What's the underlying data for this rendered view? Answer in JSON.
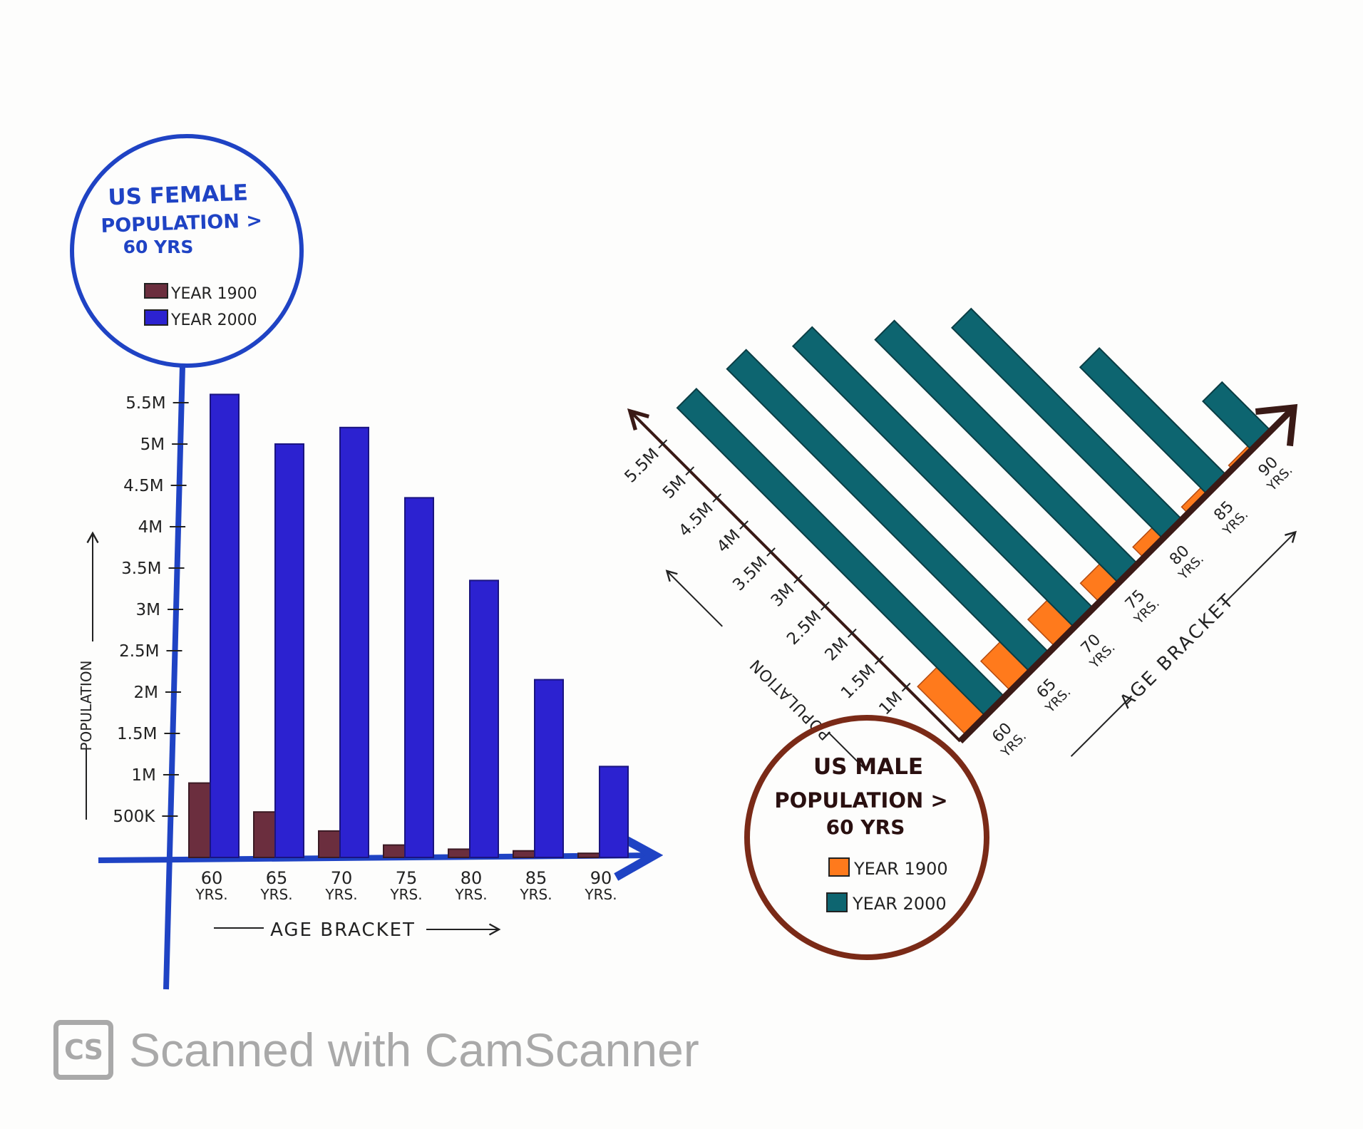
{
  "chart_data": [
    {
      "type": "bar",
      "title": "US FEMALE POPULATION > 60 YRS",
      "xlabel": "AGE BRACKET",
      "ylabel": "POPULATION",
      "categories": [
        "60 YRS.",
        "65 YRS.",
        "70 YRS.",
        "75 YRS.",
        "80 YRS.",
        "85 YRS.",
        "90 YRS."
      ],
      "yticks": [
        "500K",
        "1M",
        "1.5M",
        "2M",
        "2.5M",
        "3M",
        "3.5M",
        "4M",
        "4.5M",
        "5M",
        "5.5M"
      ],
      "ylim": [
        0,
        5.5
      ],
      "series": [
        {
          "name": "YEAR 1900",
          "values": [
            0.9,
            0.55,
            0.32,
            0.15,
            0.1,
            0.08,
            0.05
          ]
        },
        {
          "name": "YEAR 2000",
          "values": [
            5.6,
            5.0,
            5.2,
            4.35,
            3.35,
            2.15,
            1.1
          ]
        }
      ],
      "colors": {
        "YEAR 1900": "#6b2e3e",
        "YEAR 2000": "#2c22d0",
        "axis": "#1f43c4"
      },
      "legend_position": "top-left, inside title circle"
    },
    {
      "type": "bar",
      "title": "US MALE POPULATION > 60 YRS",
      "xlabel": "AGE BRACKET",
      "ylabel": "POPULATION",
      "categories": [
        "60 YRS.",
        "65 YRS.",
        "70 YRS.",
        "75 YRS.",
        "80 YRS.",
        "85 YRS.",
        "90 YRS."
      ],
      "yticks": [
        "1M",
        "1.5M",
        "2M",
        "2.5M",
        "3M",
        "3.5M",
        "4M",
        "4.5M",
        "5M",
        "5.5M"
      ],
      "ylim": [
        0,
        5.5
      ],
      "series": [
        {
          "name": "YEAR 1900",
          "values": [
            0.9,
            0.55,
            0.5,
            0.35,
            0.2,
            0.12,
            0.07
          ]
        },
        {
          "name": "YEAR 2000",
          "values": [
            5.7,
            5.6,
            5.2,
            4.5,
            3.9,
            2.35,
            0.9
          ]
        }
      ],
      "colors": {
        "YEAR 1900": "#ff7a1c",
        "YEAR 2000": "#0d6570",
        "axis": "#4a1e1a",
        "circle": "#7a2a17"
      },
      "legend_position": "bottom, inside title circle",
      "orientation": "rotated 45 degrees"
    }
  ],
  "female": {
    "title_lines": [
      "US FEMALE",
      "POPULATION >",
      "60 YRS"
    ],
    "legend": [
      "YEAR 1900",
      "YEAR 2000"
    ],
    "ylabel": "POPULATION",
    "xlabel": "AGE BRACKET",
    "xtick_num": [
      "60",
      "65",
      "70",
      "75",
      "80",
      "85",
      "90"
    ],
    "xtick_unit": "YRS."
  },
  "male": {
    "title_lines": [
      "US MALE",
      "POPULATION >",
      "60 YRS"
    ],
    "legend": [
      "YEAR 1900",
      "YEAR 2000"
    ],
    "ylabel": "POPULATION",
    "xlabel": "AGE BRACKET",
    "xtick_num": [
      "60",
      "65",
      "70",
      "75",
      "80",
      "85",
      "90"
    ],
    "xtick_unit": "YRS."
  },
  "watermark": {
    "logo": "CS",
    "text": "Scanned with CamScanner"
  }
}
